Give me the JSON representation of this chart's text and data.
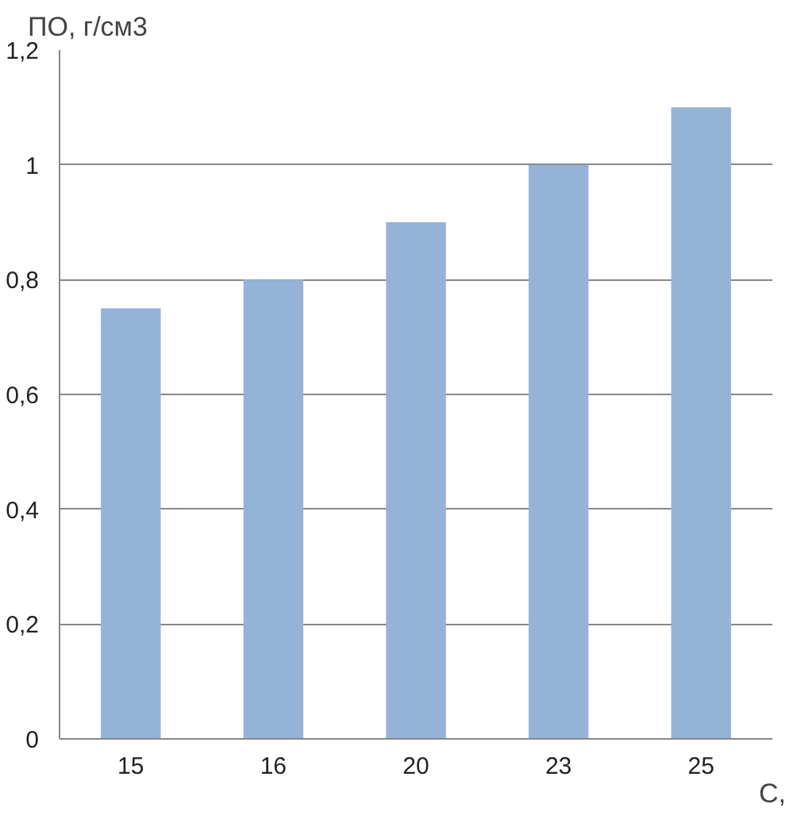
{
  "chart_data": {
    "type": "bar",
    "ylabel": "ПО, г/см3",
    "xlabel": "С,",
    "categories": [
      "15",
      "16",
      "20",
      "23",
      "25"
    ],
    "values": [
      0.75,
      0.8,
      0.9,
      1.0,
      1.1
    ],
    "color": "#95b3d7",
    "ylim": [
      0,
      1.2
    ],
    "yticks": [
      {
        "value": 0,
        "label": "0"
      },
      {
        "value": 0.2,
        "label": "0,2"
      },
      {
        "value": 0.4,
        "label": "0,4"
      },
      {
        "value": 0.6,
        "label": "0,6"
      },
      {
        "value": 0.8,
        "label": "0,8"
      },
      {
        "value": 1,
        "label": "1"
      },
      {
        "value": 1.2,
        "label": "1,2"
      }
    ],
    "grid": "y"
  }
}
